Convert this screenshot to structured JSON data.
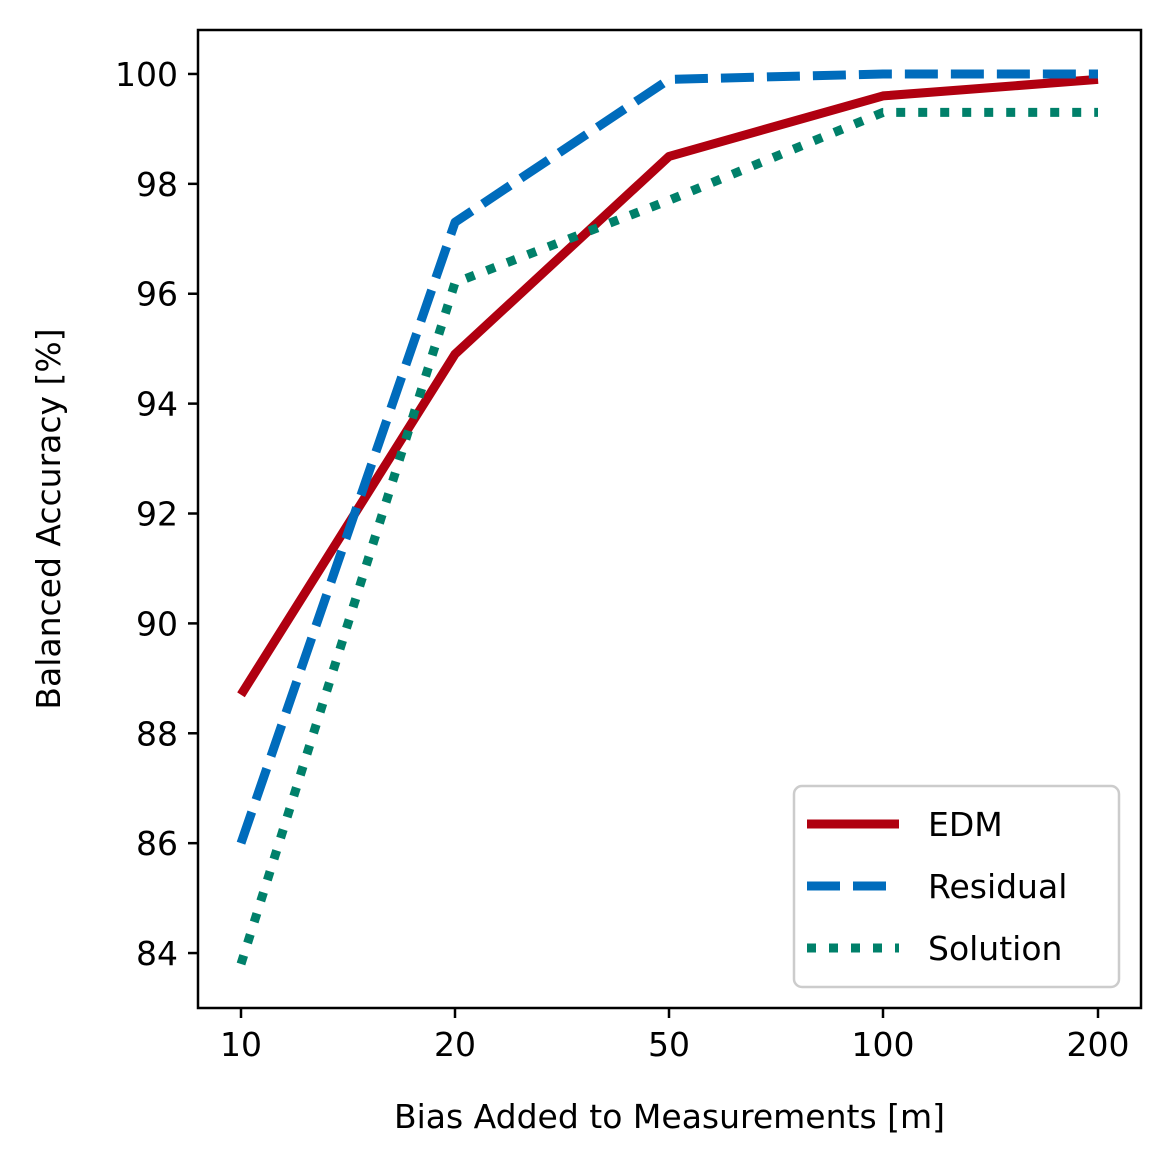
{
  "chart_data": {
    "type": "line",
    "x_categories": [
      "10",
      "20",
      "50",
      "100",
      "200"
    ],
    "xlabel": "Bias Added to Measurements [m]",
    "ylabel": "Balanced Accuracy [%]",
    "ylim": [
      83.0,
      100.8
    ],
    "yticks": [
      84,
      86,
      88,
      90,
      92,
      94,
      96,
      98,
      100
    ],
    "grid": false,
    "legend_position": "bottom-right",
    "series": [
      {
        "name": "EDM",
        "color": "#B00010",
        "style": "solid",
        "values": [
          88.7,
          94.9,
          98.5,
          99.6,
          99.9
        ]
      },
      {
        "name": "Residual",
        "color": "#006CBC",
        "style": "dashed",
        "values": [
          86.0,
          97.3,
          99.9,
          100.0,
          100.0
        ]
      },
      {
        "name": "Solution",
        "color": "#00806A",
        "style": "dotted",
        "values": [
          83.8,
          96.2,
          97.7,
          99.3,
          99.3
        ]
      }
    ]
  }
}
